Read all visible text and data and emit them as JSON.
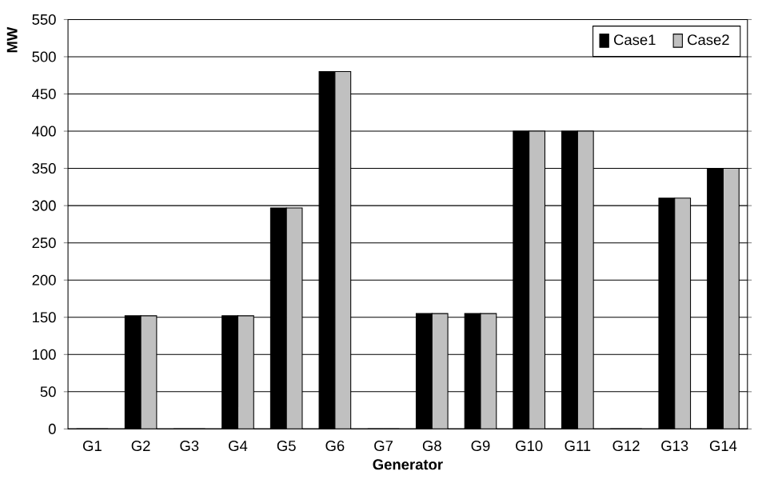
{
  "chart_data": {
    "type": "bar",
    "xlabel": "Generator",
    "ylabel": "MW",
    "categories": [
      "G1",
      "G2",
      "G3",
      "G4",
      "G5",
      "G6",
      "G7",
      "G8",
      "G9",
      "G10",
      "G11",
      "G12",
      "G13",
      "G14"
    ],
    "series": [
      {
        "name": "Case1",
        "color": "#000000",
        "values": [
          0,
          152,
          0,
          152,
          297,
          480,
          0,
          155,
          155,
          400,
          400,
          0,
          310,
          350
        ]
      },
      {
        "name": "Case2",
        "color": "#c0c0c0",
        "values": [
          0,
          152,
          0,
          152,
          297,
          480,
          0,
          155,
          155,
          400,
          400,
          0,
          310,
          350
        ]
      }
    ],
    "ylim": [
      0,
      550
    ],
    "yticks": [
      0,
      50,
      100,
      150,
      200,
      250,
      300,
      350,
      400,
      450,
      500,
      550
    ],
    "grid": "y",
    "legend": "top right"
  }
}
